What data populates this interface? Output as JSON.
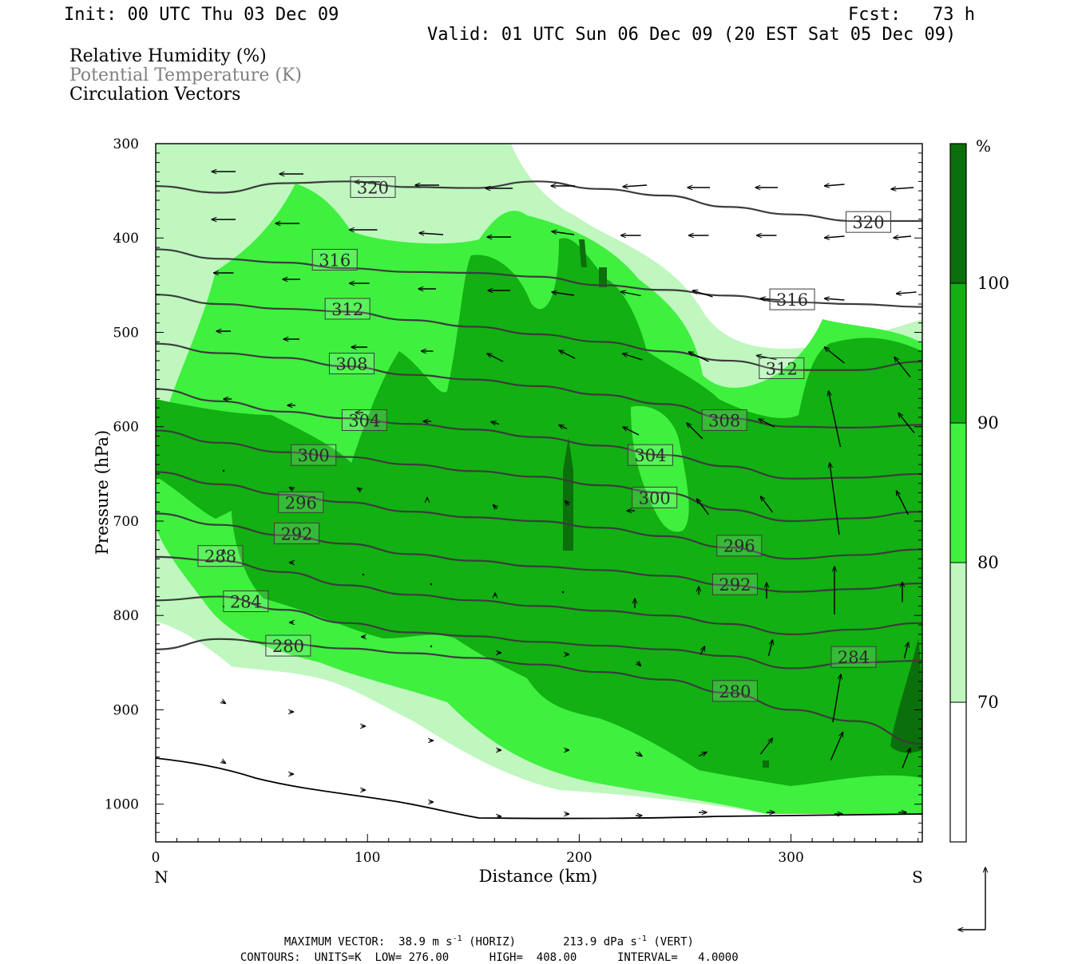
{
  "header": {
    "init": "Init: 00 UTC Thu 03 Dec 09",
    "fcst": "Fcst:   73 h",
    "valid": "Valid: 01 UTC Sun 06 Dec 09 (20 EST Sat 05 Dec 09)"
  },
  "legend": {
    "rh": "Relative Humidity (%)",
    "theta": "Potential Temperature (K)",
    "vectors": "Circulation Vectors"
  },
  "colors": {
    "rh70": "#bff7bf",
    "rh80": "#3ff03f",
    "rh90": "#12b012",
    "rh100": "#0b6f0b",
    "contour": "#3c3c3c",
    "theta_legend": "#808080"
  },
  "chart_data": {
    "type": "contour",
    "xlabel": "Distance (km)",
    "ylabel": "Pressure (hPa)",
    "xlim": [
      0,
      362
    ],
    "ylim": [
      1040,
      300
    ],
    "x_ticks": [
      0,
      100,
      200,
      300
    ],
    "y_ticks": [
      300,
      400,
      500,
      600,
      700,
      800,
      900,
      1000
    ],
    "x_end_labels": {
      "left": "N",
      "right": "S"
    },
    "colorbar": {
      "unit": "%",
      "levels": [
        70,
        80,
        90,
        100
      ],
      "labels": [
        "70",
        "80",
        "90",
        "100"
      ]
    },
    "theta_contours": {
      "units": "K",
      "interval": 4,
      "labels": [
        {
          "value": "320",
          "x": 92,
          "p": 346
        },
        {
          "value": "320",
          "x": 326,
          "p": 383
        },
        {
          "value": "316",
          "x": 74,
          "p": 423
        },
        {
          "value": "316",
          "x": 290,
          "p": 465
        },
        {
          "value": "312",
          "x": 80,
          "p": 475
        },
        {
          "value": "312",
          "x": 285,
          "p": 538
        },
        {
          "value": "308",
          "x": 82,
          "p": 533
        },
        {
          "value": "308",
          "x": 258,
          "p": 593
        },
        {
          "value": "304",
          "x": 88,
          "p": 593
        },
        {
          "value": "304",
          "x": 223,
          "p": 630
        },
        {
          "value": "300",
          "x": 64,
          "p": 630
        },
        {
          "value": "300",
          "x": 225,
          "p": 675
        },
        {
          "value": "296",
          "x": 58,
          "p": 680
        },
        {
          "value": "296",
          "x": 265,
          "p": 726
        },
        {
          "value": "292",
          "x": 56,
          "p": 713
        },
        {
          "value": "292",
          "x": 263,
          "p": 767
        },
        {
          "value": "288",
          "x": 20,
          "p": 737
        },
        {
          "value": "284",
          "x": 32,
          "p": 785
        },
        {
          "value": "284",
          "x": 319,
          "p": 844
        },
        {
          "value": "280",
          "x": 52,
          "p": 832
        },
        {
          "value": "280",
          "x": 263,
          "p": 880
        }
      ]
    },
    "footer": {
      "max_vector_label": "MAXIMUM VECTOR:",
      "max_horiz_value": "38.9",
      "max_horiz_unit": "m s",
      "max_horiz_suffix": "(HORIZ)",
      "max_vert_value": "213.9",
      "max_vert_unit": "dPa s",
      "max_vert_suffix": "(VERT)",
      "exponent": "-1",
      "contours_label": "CONTOURS:",
      "units": "UNITS=K",
      "low_label": "LOW=",
      "low": "276.00",
      "high_label": "HIGH=",
      "high": "408.00",
      "interval_label": "INTERVAL=",
      "interval": "4.0000"
    }
  }
}
